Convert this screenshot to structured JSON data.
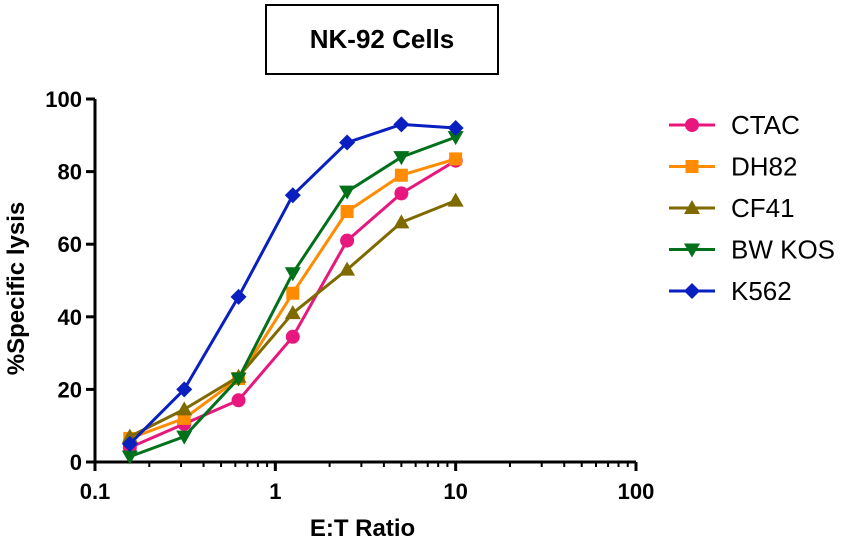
{
  "chart_data": {
    "type": "line",
    "title": "NK-92 Cells",
    "xlabel": "E:T Ratio",
    "ylabel": "%Specific lysis",
    "xscale": "log",
    "xlim": [
      0.1,
      100
    ],
    "ylim": [
      0,
      100
    ],
    "xticks": [
      0.1,
      1,
      10,
      100
    ],
    "xtick_labels": [
      "0.1",
      "1",
      "10",
      "100"
    ],
    "yticks": [
      0,
      20,
      40,
      60,
      80,
      100
    ],
    "ytick_labels": [
      "0",
      "20",
      "40",
      "60",
      "80",
      "100"
    ],
    "grid": false,
    "legend_position": "right",
    "x": [
      0.156,
      0.3125,
      0.625,
      1.25,
      2.5,
      5,
      10
    ],
    "series": [
      {
        "name": "CTAC",
        "color": "#e8177e",
        "marker": "circle",
        "values": [
          4,
          10.5,
          17,
          34.5,
          61,
          74,
          83
        ]
      },
      {
        "name": "DH82",
        "color": "#ff8c00",
        "marker": "square",
        "values": [
          6.5,
          12,
          23,
          46.5,
          69,
          79,
          83.5
        ]
      },
      {
        "name": "CF41",
        "color": "#7f6a00",
        "marker": "triangle-up",
        "values": [
          7,
          14.5,
          23.5,
          41,
          53,
          66,
          72
        ]
      },
      {
        "name": "BW KOS",
        "color": "#00701a",
        "marker": "triangle-down",
        "values": [
          1.5,
          7,
          23,
          52,
          74.5,
          84,
          89.5
        ]
      },
      {
        "name": "K562",
        "color": "#0a1fbf",
        "marker": "diamond",
        "values": [
          5,
          20,
          45.5,
          73.5,
          88,
          93,
          92
        ]
      }
    ]
  }
}
